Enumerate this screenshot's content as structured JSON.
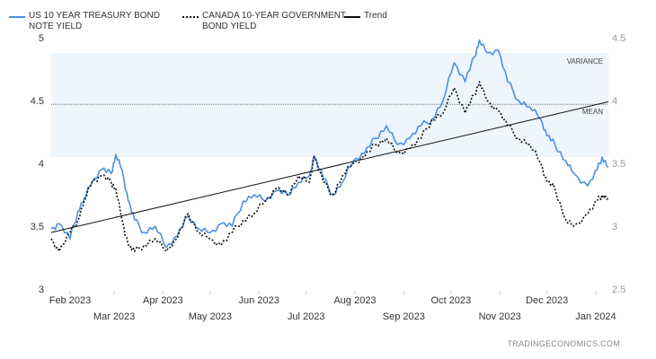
{
  "legend": {
    "us": "US 10 YEAR TREASURY BOND NOTE YIELD",
    "us_line1": "US 10 YEAR TREASURY BOND",
    "us_line2": "NOTE YIELD",
    "ca_line1": "CANADA 10-YEAR GOVERNMENT",
    "ca_line2": "BOND YIELD",
    "trend": "Trend"
  },
  "watermark": "TRADINGECONOMICS.COM",
  "chart_data": {
    "type": "line",
    "x_ticks_upper": [
      "Feb 2023",
      "Apr 2023",
      "Jun 2023",
      "Aug 2023",
      "Oct 2023",
      "Dec 2023"
    ],
    "x_ticks_lower": [
      "Mar 2023",
      "May 2023",
      "Jul 2023",
      "Sep 2023",
      "Nov 2023",
      "Jan 2024"
    ],
    "left_axis": {
      "ylim": [
        3,
        5
      ],
      "ticks": [
        "3",
        "3.5",
        "4",
        "4.5",
        "5"
      ]
    },
    "right_axis": {
      "ylim": [
        2.5,
        4.5
      ],
      "ticks": [
        "2.5",
        "3",
        "3.5",
        "4",
        "4.5"
      ]
    },
    "x_range": [
      "2023-01-20",
      "2024-01-09"
    ],
    "annotations": {
      "variance_label": "VARIANCE",
      "variance_band": [
        4.05,
        4.88
      ],
      "mean_label": "MEAN",
      "mean_value": 4.47
    },
    "trend": {
      "start": [
        "2023-01-20",
        3.45
      ],
      "end": [
        "2024-01-09",
        4.49
      ]
    },
    "colors": {
      "us": "#4a90e2",
      "canada": "#111111",
      "trend": "#111111",
      "band": "#eef5fc"
    },
    "series": [
      {
        "name": "US 10 YEAR TREASURY BOND NOTE YIELD",
        "axis": "left",
        "x": [
          "2023-01-20",
          "2023-01-25",
          "2023-02-01",
          "2023-02-06",
          "2023-02-10",
          "2023-02-15",
          "2023-02-21",
          "2023-02-27",
          "2023-03-02",
          "2023-03-06",
          "2023-03-10",
          "2023-03-14",
          "2023-03-20",
          "2023-03-27",
          "2023-04-03",
          "2023-04-10",
          "2023-04-17",
          "2023-04-24",
          "2023-05-01",
          "2023-05-08",
          "2023-05-15",
          "2023-05-22",
          "2023-05-29",
          "2023-06-05",
          "2023-06-12",
          "2023-06-19",
          "2023-06-26",
          "2023-07-03",
          "2023-07-06",
          "2023-07-12",
          "2023-07-18",
          "2023-07-24",
          "2023-07-31",
          "2023-08-07",
          "2023-08-14",
          "2023-08-21",
          "2023-08-28",
          "2023-09-05",
          "2023-09-12",
          "2023-09-19",
          "2023-09-26",
          "2023-10-03",
          "2023-10-10",
          "2023-10-16",
          "2023-10-19",
          "2023-10-24",
          "2023-10-31",
          "2023-11-06",
          "2023-11-13",
          "2023-11-20",
          "2023-11-27",
          "2023-12-01",
          "2023-12-06",
          "2023-12-13",
          "2023-12-18",
          "2023-12-27",
          "2024-01-02",
          "2024-01-05",
          "2024-01-09"
        ],
        "y": [
          3.48,
          3.52,
          3.4,
          3.62,
          3.72,
          3.85,
          3.95,
          3.92,
          4.07,
          3.95,
          3.7,
          3.55,
          3.45,
          3.5,
          3.33,
          3.42,
          3.58,
          3.48,
          3.45,
          3.52,
          3.5,
          3.7,
          3.75,
          3.7,
          3.78,
          3.75,
          3.85,
          3.9,
          4.06,
          3.88,
          3.75,
          3.85,
          4.02,
          4.08,
          4.2,
          4.3,
          4.15,
          4.2,
          4.3,
          4.35,
          4.5,
          4.8,
          4.65,
          4.85,
          4.98,
          4.88,
          4.9,
          4.65,
          4.5,
          4.45,
          4.35,
          4.22,
          4.15,
          4.02,
          3.92,
          3.82,
          3.95,
          4.05,
          3.97
        ]
      },
      {
        "name": "CANADA 10-YEAR GOVERNMENT BOND YIELD",
        "axis": "right",
        "x": [
          "2023-01-20",
          "2023-01-25",
          "2023-02-01",
          "2023-02-06",
          "2023-02-10",
          "2023-02-15",
          "2023-02-21",
          "2023-02-27",
          "2023-03-02",
          "2023-03-06",
          "2023-03-10",
          "2023-03-14",
          "2023-03-20",
          "2023-03-27",
          "2023-04-03",
          "2023-04-10",
          "2023-04-17",
          "2023-04-24",
          "2023-05-01",
          "2023-05-08",
          "2023-05-15",
          "2023-05-22",
          "2023-05-29",
          "2023-06-05",
          "2023-06-12",
          "2023-06-19",
          "2023-06-26",
          "2023-07-03",
          "2023-07-06",
          "2023-07-12",
          "2023-07-18",
          "2023-07-24",
          "2023-07-31",
          "2023-08-07",
          "2023-08-14",
          "2023-08-21",
          "2023-08-28",
          "2023-09-05",
          "2023-09-12",
          "2023-09-19",
          "2023-09-26",
          "2023-10-03",
          "2023-10-10",
          "2023-10-16",
          "2023-10-19",
          "2023-10-24",
          "2023-10-31",
          "2023-11-06",
          "2023-11-13",
          "2023-11-20",
          "2023-11-27",
          "2023-12-01",
          "2023-12-06",
          "2023-12-13",
          "2023-12-18",
          "2023-12-27",
          "2024-01-02",
          "2024-01-05",
          "2024-01-09"
        ],
        "y": [
          2.9,
          2.8,
          2.95,
          3.05,
          3.2,
          3.35,
          3.4,
          3.35,
          3.3,
          3.05,
          2.85,
          2.8,
          2.85,
          2.9,
          2.8,
          2.9,
          3.1,
          2.95,
          2.9,
          2.85,
          2.95,
          3.05,
          3.1,
          3.2,
          3.3,
          3.25,
          3.4,
          3.35,
          3.55,
          3.35,
          3.25,
          3.4,
          3.5,
          3.55,
          3.65,
          3.7,
          3.58,
          3.62,
          3.7,
          3.85,
          3.9,
          4.1,
          3.9,
          4.05,
          4.15,
          4.0,
          3.92,
          3.8,
          3.7,
          3.65,
          3.5,
          3.35,
          3.3,
          3.05,
          3.0,
          3.1,
          3.2,
          3.25,
          3.22
        ]
      }
    ]
  }
}
